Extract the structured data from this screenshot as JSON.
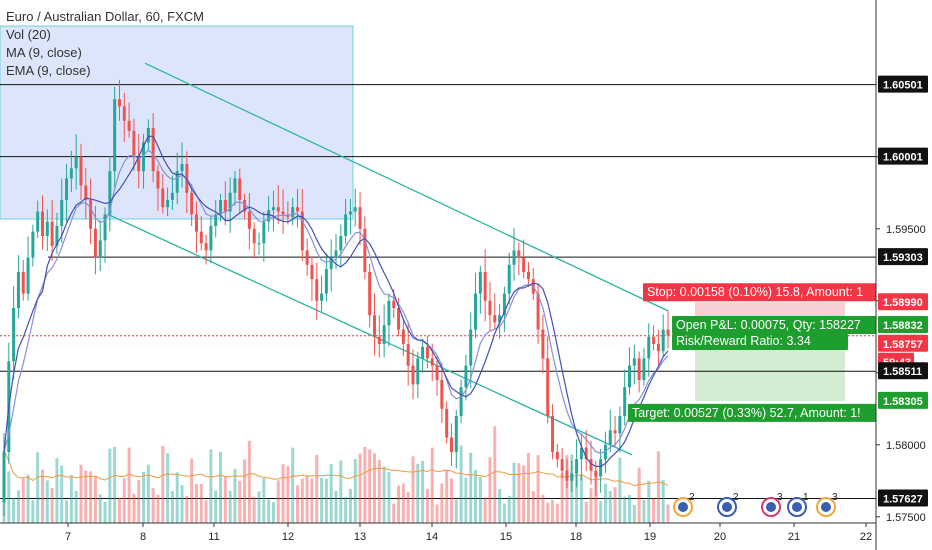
{
  "header": {
    "symbol": "Euro / Australian Dollar, 60, FXCM",
    "indicators": [
      "Vol (20)",
      "MA (9, close)",
      "EMA (9, close)"
    ]
  },
  "colors": {
    "up": "#26a69a",
    "down": "#ef5350",
    "ma": "#3f51b5",
    "ema": "#8a8fd8",
    "channel": "#2bb5a3",
    "selection_fill": "#dde5fa",
    "selection_border": "#6fd1e3",
    "stop_zone": "#f8cfd2",
    "target_zone": "#d4ecd2",
    "stop_label": "#f23645",
    "target_label": "#1e9e2e",
    "current_price": "#f23645",
    "volume_ma": "#f09a3e"
  },
  "chart_data": {
    "type": "candlestick",
    "title": "Euro / Australian Dollar, 60, FXCM",
    "x_ticks": [
      "7",
      "8",
      "11",
      "12",
      "13",
      "14",
      "15",
      "18",
      "19",
      "20",
      "21",
      "22"
    ],
    "y_ticks": [
      "1.60000",
      "1.59500",
      "1.59000",
      "1.58500",
      "1.58000",
      "1.57500"
    ],
    "ylim": [
      1.572,
      1.609
    ],
    "grid": false,
    "candles_close": [
      1.5795,
      1.5858,
      1.5895,
      1.592,
      1.5905,
      1.593,
      1.5948,
      1.5962,
      1.5945,
      1.5955,
      1.5938,
      1.5952,
      1.597,
      1.5985,
      1.5992,
      1.6,
      1.598,
      1.597,
      1.595,
      1.593,
      1.5942,
      1.596,
      1.599,
      1.604,
      1.6035,
      1.6025,
      1.6018,
      1.6,
      1.599,
      1.601,
      1.602,
      1.599,
      1.5978,
      1.5965,
      1.597,
      1.5975,
      1.599,
      1.5995,
      1.5975,
      1.596,
      1.5948,
      1.594,
      1.5935,
      1.5952,
      1.596,
      1.597,
      1.5962,
      1.5975,
      1.5985,
      1.597,
      1.5962,
      1.595,
      1.594,
      1.594,
      1.5955,
      1.5963,
      1.5965,
      1.5962,
      1.596,
      1.5958,
      1.5965,
      1.5962,
      1.5935,
      1.5925,
      1.5915,
      1.59,
      1.5905,
      1.5922,
      1.593,
      1.5935,
      1.5945,
      1.596,
      1.5962,
      1.5965,
      1.595,
      1.592,
      1.589,
      1.5875,
      1.587,
      1.5883,
      1.59,
      1.5895,
      1.588,
      1.587,
      1.5855,
      1.5842,
      1.586,
      1.5868,
      1.586,
      1.5855,
      1.5845,
      1.5825,
      1.5805,
      1.5795,
      1.582,
      1.584,
      1.5855,
      1.588,
      1.5905,
      1.592,
      1.59,
      1.589,
      1.5885,
      1.589,
      1.5905,
      1.5925,
      1.5935,
      1.593,
      1.592,
      1.5915,
      1.5905,
      1.588,
      1.586,
      1.582,
      1.5795,
      1.579,
      1.5782,
      1.5775,
      1.578,
      1.579,
      1.5798,
      1.579,
      1.5782,
      1.5778,
      1.579,
      1.58,
      1.581,
      1.5808,
      1.582,
      1.584,
      1.5855,
      1.586,
      1.5845,
      1.586,
      1.5875,
      1.587,
      1.5865,
      1.588,
      1.5876
    ],
    "overlays": [
      {
        "name": "MA (9, close)",
        "type": "line"
      },
      {
        "name": "EMA (9, close)",
        "type": "line"
      }
    ],
    "horizontal_levels": [
      1.60501,
      1.60001,
      1.59303,
      1.58511,
      1.57627
    ],
    "price_labels": [
      {
        "value": "1.60501",
        "kind": "level"
      },
      {
        "value": "1.60001",
        "kind": "level"
      },
      {
        "value": "1.59303",
        "kind": "level"
      },
      {
        "value": "1.58990",
        "kind": "stop"
      },
      {
        "value": "1.58832",
        "kind": "entry"
      },
      {
        "value": "1.58757",
        "kind": "current"
      },
      {
        "value": "59:43",
        "kind": "countdown"
      },
      {
        "value": "1.58511",
        "kind": "level"
      },
      {
        "value": "1.58305",
        "kind": "target"
      },
      {
        "value": "1.57627",
        "kind": "level"
      }
    ],
    "current_price": 1.58757,
    "position": {
      "stop_label": "Stop: 0.00158 (0.10%) 15.8, Amount: 1",
      "pnl_label": "Open P&L: 0.00075, Qty: 158227",
      "rr_label": "Risk/Reward Ratio: 3.34",
      "target_label": "Target: 0.00527 (0.33%) 52.7, Amount: 1!",
      "entry": 1.58832,
      "stop": 1.5899,
      "target": 1.58305
    },
    "event_badges": [
      "2",
      "2",
      "3",
      "1",
      "3"
    ]
  }
}
